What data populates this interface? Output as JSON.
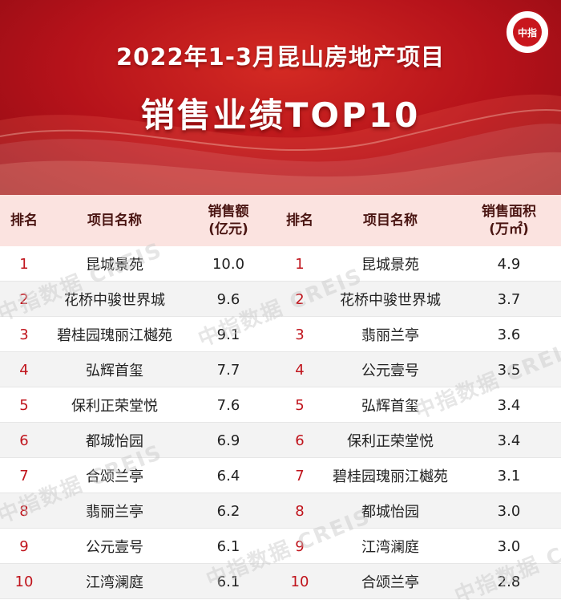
{
  "banner": {
    "title_line1": "2022年1-3月昆山房地产项目",
    "title_line2": "销售业绩TOP10",
    "logo_text": "中指",
    "colors": {
      "primary": "#c8161d",
      "dark": "#8f0b13"
    }
  },
  "table": {
    "headers": {
      "rank_left": "排名",
      "name_left": "项目名称",
      "value_left_line1": "销售额",
      "value_left_line2": "(亿元)",
      "rank_right": "排名",
      "name_right": "项目名称",
      "value_right_line1": "销售面积",
      "value_right_line2": "(万㎡)"
    },
    "rows": [
      {
        "rank": "1",
        "left_name": "昆城景苑",
        "left_value": "10.0",
        "right_name": "昆城景苑",
        "right_value": "4.9"
      },
      {
        "rank": "2",
        "left_name": "花桥中骏世界城",
        "left_value": "9.6",
        "right_name": "花桥中骏世界城",
        "right_value": "3.7"
      },
      {
        "rank": "3",
        "left_name": "碧桂园瑰丽江樾苑",
        "left_value": "9.1",
        "right_name": "翡丽兰亭",
        "right_value": "3.6"
      },
      {
        "rank": "4",
        "left_name": "弘辉首玺",
        "left_value": "7.7",
        "right_name": "公元壹号",
        "right_value": "3.5"
      },
      {
        "rank": "5",
        "left_name": "保利正荣堂悦",
        "left_value": "7.6",
        "right_name": "弘辉首玺",
        "right_value": "3.4"
      },
      {
        "rank": "6",
        "left_name": "都城怡园",
        "left_value": "6.9",
        "right_name": "保利正荣堂悦",
        "right_value": "3.4"
      },
      {
        "rank": "7",
        "left_name": "合颂兰亭",
        "left_value": "6.4",
        "right_name": "碧桂园瑰丽江樾苑",
        "right_value": "3.1"
      },
      {
        "rank": "8",
        "left_name": "翡丽兰亭",
        "left_value": "6.2",
        "right_name": "都城怡园",
        "right_value": "3.0"
      },
      {
        "rank": "9",
        "left_name": "公元壹号",
        "left_value": "6.1",
        "right_name": "江湾澜庭",
        "right_value": "3.0"
      },
      {
        "rank": "10",
        "left_name": "江湾澜庭",
        "left_value": "6.1",
        "right_name": "合颂兰亭",
        "right_value": "2.8"
      }
    ]
  },
  "watermark": {
    "text": "中指数据 CREIS"
  }
}
